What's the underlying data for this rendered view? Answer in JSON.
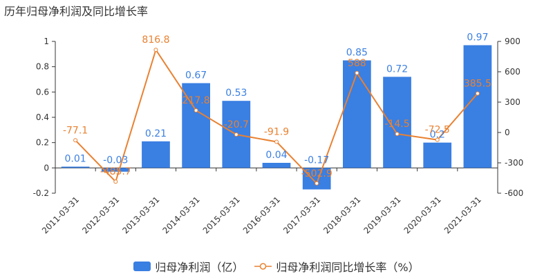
{
  "chart_data": {
    "type": "bar",
    "title": "历年归母净利润及同比增长率",
    "categories": [
      "2011-03-31",
      "2012-03-31",
      "2013-03-31",
      "2014-03-31",
      "2015-03-31",
      "2016-03-31",
      "2017-03-31",
      "2018-03-31",
      "2019-03-31",
      "2020-03-31",
      "2021-03-31"
    ],
    "series": [
      {
        "name": "归母净利润（亿）",
        "type": "bar",
        "axis": "left",
        "color": "#3a7fe2",
        "label_color": "#3a7fe2",
        "values": [
          0.01,
          -0.03,
          0.21,
          0.67,
          0.53,
          0.04,
          -0.17,
          0.85,
          0.72,
          0.2,
          0.97
        ],
        "labels": [
          "0.01",
          "-0.03",
          "0.21",
          "0.67",
          "0.53",
          "0.04",
          "-0.17",
          "0.85",
          "0.72",
          "0.2",
          "0.97"
        ]
      },
      {
        "name": "归母净利润同比增长率（%）",
        "type": "line",
        "axis": "right",
        "color": "#e98131",
        "label_color": "#e98131",
        "values": [
          -77.1,
          -485.7,
          816.8,
          217.8,
          -20.7,
          -91.9,
          -502.9,
          588,
          -14.5,
          -72.5,
          385.5
        ],
        "labels": [
          "-77.1",
          "-485.7",
          "816.8",
          "217.8",
          "-20.7",
          "-91.9",
          "-502.9",
          "588",
          "-14.5",
          "-72.5",
          "385.5"
        ]
      }
    ],
    "y_left": {
      "min": -0.2,
      "max": 1,
      "ticks": [
        "-0.2",
        "0",
        "0.2",
        "0.4",
        "0.6",
        "0.8",
        "1"
      ]
    },
    "y_right": {
      "min": -600,
      "max": 900,
      "ticks": [
        "-600",
        "-300",
        "0",
        "300",
        "600",
        "900"
      ]
    },
    "legend_position": "bottom-center",
    "grid": false
  }
}
